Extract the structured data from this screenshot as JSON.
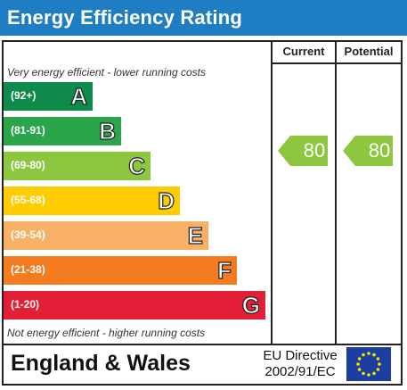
{
  "title": "Energy Efficiency Rating",
  "columns": {
    "current": "Current",
    "potential": "Potential"
  },
  "top_note": "Very energy efficient - lower running costs",
  "bottom_note": "Not energy efficient - higher running costs",
  "bands": [
    {
      "range": "(92+)",
      "letter": "A",
      "color": "#0e8a4a"
    },
    {
      "range": "(81-91)",
      "letter": "B",
      "color": "#2aa54a"
    },
    {
      "range": "(69-80)",
      "letter": "C",
      "color": "#8dc63f"
    },
    {
      "range": "(55-68)",
      "letter": "D",
      "color": "#ffcc00"
    },
    {
      "range": "(39-54)",
      "letter": "E",
      "color": "#f7b066"
    },
    {
      "range": "(21-38)",
      "letter": "F",
      "color": "#f47b20"
    },
    {
      "range": "(1-20)",
      "letter": "G",
      "color": "#e21f36"
    }
  ],
  "current_rating": "80",
  "potential_rating": "80",
  "rating_color": "#8dc63f",
  "footer": {
    "region": "England & Wales",
    "directive_line1": "EU Directive",
    "directive_line2": "2002/91/EC"
  },
  "eu_flag_icon": "eu-flag-icon"
}
